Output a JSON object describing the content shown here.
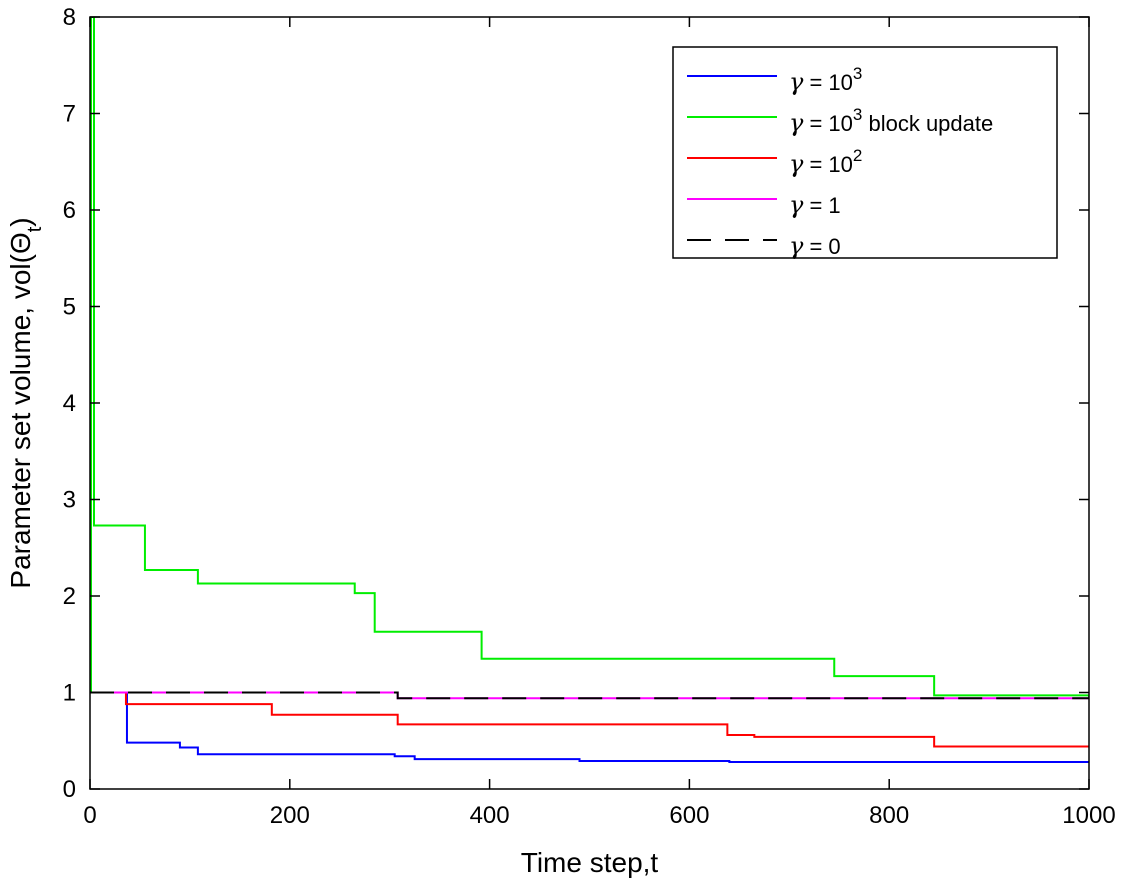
{
  "chart_data": {
    "type": "line",
    "title": "",
    "xlabel": "Time step,t",
    "ylabel": "Parameter set volume, vol(Θ_t)",
    "ylabel_parts": {
      "main": "Parameter set volume, vol(Θ",
      "sub": "t",
      "close": ")"
    },
    "xlim": [
      0,
      1000
    ],
    "ylim": [
      0,
      8
    ],
    "xticks": [
      0,
      200,
      400,
      600,
      800,
      1000
    ],
    "yticks": [
      0,
      1,
      2,
      3,
      4,
      5,
      6,
      7,
      8
    ],
    "grid": false,
    "legend_position": "top-right",
    "series": [
      {
        "name": "γ = 10^3",
        "legend": {
          "greek": "γ",
          "eq": " = 10",
          "sup": "3",
          "suffix": ""
        },
        "color": "#0000ff",
        "style": "solid",
        "step": true,
        "x": [
          0,
          36,
          37,
          85,
          90,
          108,
          305,
          325,
          490,
          640,
          1000
        ],
        "y": [
          1.0,
          1.0,
          0.48,
          0.48,
          0.43,
          0.36,
          0.34,
          0.31,
          0.29,
          0.28,
          0.28
        ]
      },
      {
        "name": "γ = 10^3 block update",
        "legend": {
          "greek": "γ",
          "eq": " = 10",
          "sup": "3",
          "suffix": " block update"
        },
        "color": "#00ee00",
        "style": "solid",
        "step": true,
        "x": [
          0,
          1,
          4,
          55,
          108,
          265,
          285,
          392,
          745,
          845,
          1000
        ],
        "y": [
          1.0,
          8.0,
          2.73,
          2.27,
          2.13,
          2.03,
          1.63,
          1.35,
          1.17,
          0.97,
          0.95
        ]
      },
      {
        "name": "γ = 10^2",
        "legend": {
          "greek": "γ",
          "eq": " = 10",
          "sup": "2",
          "suffix": ""
        },
        "color": "#ff0000",
        "style": "solid",
        "step": true,
        "x": [
          0,
          36,
          182,
          308,
          638,
          665,
          845,
          1000
        ],
        "y": [
          1.0,
          0.88,
          0.77,
          0.67,
          0.56,
          0.54,
          0.44,
          0.44
        ]
      },
      {
        "name": "γ = 1",
        "legend": {
          "greek": "γ",
          "eq": " = 1",
          "sup": "",
          "suffix": ""
        },
        "color": "#ff00ff",
        "style": "solid",
        "step": true,
        "x": [
          0,
          308,
          1000
        ],
        "y": [
          1.0,
          0.94,
          0.94
        ]
      },
      {
        "name": "γ = 0",
        "legend": {
          "greek": "γ",
          "eq": " = 0",
          "sup": "",
          "suffix": ""
        },
        "color": "#000000",
        "style": "dashed",
        "step": true,
        "x": [
          0,
          308,
          1000
        ],
        "y": [
          1.0,
          0.94,
          0.94
        ]
      }
    ]
  }
}
